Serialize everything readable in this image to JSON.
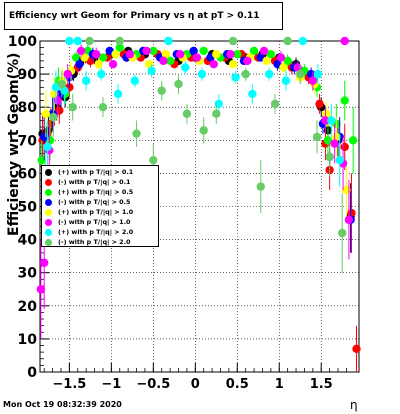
{
  "chart_data": {
    "type": "scatter",
    "title": "Efficiency wrt Geom for Primary vs   η at pT > 0.11",
    "xlabel": "η",
    "ylabel": "Efficiency wrt Geom(%)",
    "xlim": [
      -1.85,
      1.95
    ],
    "ylim": [
      0,
      100
    ],
    "x_ticks": [
      -1.5,
      -1,
      -0.5,
      0,
      0.5,
      1,
      1.5
    ],
    "x_tick_labels": [
      "−1.5",
      "−1",
      "−0.5",
      "0",
      "0.5",
      "1",
      "1.5"
    ],
    "y_ticks": [
      0,
      10,
      20,
      30,
      40,
      50,
      60,
      70,
      80,
      90,
      100
    ],
    "y_tick_labels": [
      "0",
      "10",
      "20",
      "30",
      "40",
      "50",
      "60",
      "70",
      "80",
      "90",
      "100"
    ],
    "grid": true,
    "legend_position": "left-middle",
    "series": [
      {
        "name": "(+) with p T/|q| > 0.1",
        "color": "#000000",
        "points": [
          [
            -1.82,
            72,
            6
          ],
          [
            -1.75,
            73,
            5
          ],
          [
            -1.65,
            80,
            4
          ],
          [
            -1.55,
            83,
            3
          ],
          [
            -1.45,
            90,
            2
          ],
          [
            -1.35,
            94,
            2
          ],
          [
            -1.2,
            95,
            2
          ],
          [
            -1.0,
            96,
            1
          ],
          [
            -0.8,
            97,
            1
          ],
          [
            -0.6,
            96,
            1
          ],
          [
            -0.4,
            95,
            1
          ],
          [
            -0.2,
            94,
            1
          ],
          [
            0.0,
            95,
            1
          ],
          [
            0.2,
            96,
            1
          ],
          [
            0.4,
            94,
            1
          ],
          [
            0.6,
            95,
            1
          ],
          [
            0.8,
            96,
            1
          ],
          [
            1.0,
            95,
            1
          ],
          [
            1.2,
            93,
            2
          ],
          [
            1.4,
            88,
            2
          ],
          [
            1.5,
            80,
            3
          ],
          [
            1.58,
            73,
            4
          ],
          [
            1.7,
            70,
            6
          ],
          [
            1.85,
            47,
            10
          ]
        ]
      },
      {
        "name": "(-) with p T/|q| > 0.1",
        "color": "#ff0000",
        "points": [
          [
            -1.82,
            70,
            7
          ],
          [
            -1.72,
            75,
            5
          ],
          [
            -1.62,
            79,
            4
          ],
          [
            -1.5,
            86,
            3
          ],
          [
            -1.4,
            92,
            2
          ],
          [
            -1.25,
            94,
            2
          ],
          [
            -1.05,
            95,
            1
          ],
          [
            -0.85,
            96,
            1
          ],
          [
            -0.65,
            95,
            1
          ],
          [
            -0.45,
            96,
            1
          ],
          [
            -0.25,
            93,
            1
          ],
          [
            -0.05,
            95,
            1
          ],
          [
            0.15,
            94,
            1
          ],
          [
            0.35,
            95,
            1
          ],
          [
            0.55,
            96,
            1
          ],
          [
            0.75,
            95,
            1
          ],
          [
            0.95,
            94,
            1
          ],
          [
            1.15,
            92,
            2
          ],
          [
            1.35,
            89,
            2
          ],
          [
            1.48,
            81,
            3
          ],
          [
            1.55,
            69,
            5
          ],
          [
            1.6,
            61,
            6
          ],
          [
            1.78,
            68,
            7
          ],
          [
            1.86,
            48,
            12
          ],
          [
            1.92,
            7,
            7
          ]
        ]
      },
      {
        "name": "(+) with p T/|q| > 0.5",
        "color": "#00ff00",
        "points": [
          [
            -1.83,
            64,
            8
          ],
          [
            -1.73,
            70,
            6
          ],
          [
            -1.63,
            88,
            4
          ],
          [
            -1.55,
            84,
            3
          ],
          [
            -1.42,
            95,
            2
          ],
          [
            -1.28,
            97,
            2
          ],
          [
            -1.1,
            95,
            1
          ],
          [
            -0.9,
            98,
            1
          ],
          [
            -0.7,
            96,
            1
          ],
          [
            -0.5,
            97,
            1
          ],
          [
            -0.3,
            94,
            1
          ],
          [
            -0.1,
            96,
            1
          ],
          [
            0.1,
            97,
            1
          ],
          [
            0.3,
            95,
            1
          ],
          [
            0.5,
            96,
            1
          ],
          [
            0.7,
            97,
            1
          ],
          [
            0.9,
            96,
            1
          ],
          [
            1.1,
            94,
            2
          ],
          [
            1.3,
            91,
            2
          ],
          [
            1.45,
            86,
            3
          ],
          [
            1.58,
            70,
            5
          ],
          [
            1.68,
            75,
            6
          ],
          [
            1.78,
            82,
            6
          ],
          [
            1.88,
            70,
            10
          ]
        ]
      },
      {
        "name": "(-) with p T/|q| > 0.5",
        "color": "#0000ff",
        "points": [
          [
            -1.8,
            71,
            7
          ],
          [
            -1.7,
            78,
            5
          ],
          [
            -1.6,
            84,
            4
          ],
          [
            -1.5,
            89,
            3
          ],
          [
            -1.38,
            93,
            2
          ],
          [
            -1.22,
            96,
            2
          ],
          [
            -1.02,
            97,
            1
          ],
          [
            -0.82,
            95,
            1
          ],
          [
            -0.62,
            97,
            1
          ],
          [
            -0.42,
            95,
            1
          ],
          [
            -0.22,
            96,
            1
          ],
          [
            -0.02,
            97,
            1
          ],
          [
            0.18,
            95,
            1
          ],
          [
            0.38,
            96,
            1
          ],
          [
            0.58,
            94,
            1
          ],
          [
            0.78,
            95,
            1
          ],
          [
            0.98,
            93,
            2
          ],
          [
            1.18,
            92,
            2
          ],
          [
            1.38,
            90,
            2
          ],
          [
            1.52,
            75,
            3
          ],
          [
            1.6,
            65,
            5
          ],
          [
            1.72,
            71,
            6
          ],
          [
            1.85,
            46,
            10
          ]
        ]
      },
      {
        "name": "(+) with p T/|q| > 1.0",
        "color": "#ffff00",
        "points": [
          [
            -1.78,
            78,
            7
          ],
          [
            -1.68,
            84,
            5
          ],
          [
            -1.58,
            88,
            4
          ],
          [
            -1.48,
            91,
            3
          ],
          [
            -1.32,
            95,
            2
          ],
          [
            -1.15,
            93,
            2
          ],
          [
            -0.95,
            96,
            1
          ],
          [
            -0.75,
            95,
            1
          ],
          [
            -0.55,
            93,
            1
          ],
          [
            -0.35,
            96,
            1
          ],
          [
            -0.15,
            95,
            1
          ],
          [
            0.05,
            94,
            1
          ],
          [
            0.25,
            96,
            1
          ],
          [
            0.45,
            93,
            1
          ],
          [
            0.65,
            95,
            1
          ],
          [
            0.85,
            94,
            1
          ],
          [
            1.05,
            92,
            2
          ],
          [
            1.25,
            89,
            2
          ],
          [
            1.42,
            87,
            3
          ],
          [
            1.56,
            78,
            4
          ],
          [
            1.68,
            71,
            6
          ],
          [
            1.8,
            55,
            9
          ]
        ]
      },
      {
        "name": "(-) with p T/|q| > 1.0",
        "color": "#ff00ff",
        "points": [
          [
            -1.84,
            25,
            15
          ],
          [
            -1.8,
            33,
            14
          ],
          [
            -1.74,
            67,
            8
          ],
          [
            -1.64,
            82,
            5
          ],
          [
            -1.52,
            90,
            3
          ],
          [
            -1.36,
            97,
            2
          ],
          [
            -1.18,
            96,
            2
          ],
          [
            -0.98,
            93,
            1
          ],
          [
            -0.78,
            96,
            1
          ],
          [
            -0.58,
            97,
            1
          ],
          [
            -0.38,
            94,
            1
          ],
          [
            -0.18,
            96,
            1
          ],
          [
            0.02,
            95,
            1
          ],
          [
            0.22,
            93,
            1
          ],
          [
            0.42,
            96,
            1
          ],
          [
            0.62,
            94,
            1
          ],
          [
            0.82,
            97,
            1
          ],
          [
            1.02,
            95,
            2
          ],
          [
            1.22,
            92,
            2
          ],
          [
            1.4,
            88,
            3
          ],
          [
            1.55,
            76,
            4
          ],
          [
            1.66,
            69,
            6
          ],
          [
            1.76,
            63,
            8
          ],
          [
            1.83,
            46,
            12
          ],
          [
            1.78,
            100,
            1
          ]
        ]
      },
      {
        "name": "(+) with p T/|q| > 2.0",
        "color": "#00ffff",
        "points": [
          [
            -1.76,
            68,
            8
          ],
          [
            -1.66,
            86,
            5
          ],
          [
            -1.56,
            85,
            4
          ],
          [
            -1.5,
            100,
            1
          ],
          [
            -1.4,
            100,
            1
          ],
          [
            -1.3,
            88,
            3
          ],
          [
            -1.12,
            90,
            2
          ],
          [
            -0.92,
            84,
            3
          ],
          [
            -0.72,
            88,
            2
          ],
          [
            -0.52,
            91,
            2
          ],
          [
            -0.32,
            100,
            1
          ],
          [
            -0.12,
            92,
            2
          ],
          [
            0.08,
            90,
            2
          ],
          [
            0.28,
            81,
            3
          ],
          [
            0.48,
            89,
            2
          ],
          [
            0.68,
            84,
            3
          ],
          [
            0.88,
            90,
            2
          ],
          [
            1.08,
            88,
            3
          ],
          [
            1.28,
            100,
            1
          ],
          [
            1.46,
            90,
            3
          ],
          [
            1.62,
            76,
            5
          ],
          [
            1.72,
            64,
            8
          ]
        ]
      },
      {
        "name": "(-) with p T/|q| > 2.0",
        "color": "#66cc66",
        "points": [
          [
            -1.79,
            57,
            10
          ],
          [
            -1.69,
            77,
            6
          ],
          [
            -1.59,
            87,
            4
          ],
          [
            -1.46,
            80,
            4
          ],
          [
            -1.26,
            100,
            1
          ],
          [
            -1.1,
            80,
            3
          ],
          [
            -0.9,
            100,
            1
          ],
          [
            -0.7,
            72,
            4
          ],
          [
            -0.5,
            64,
            5
          ],
          [
            -0.4,
            85,
            3
          ],
          [
            -0.2,
            87,
            3
          ],
          [
            -0.1,
            78,
            3
          ],
          [
            0.1,
            73,
            4
          ],
          [
            0.25,
            78,
            3
          ],
          [
            0.45,
            100,
            1
          ],
          [
            0.6,
            90,
            2
          ],
          [
            0.78,
            56,
            8
          ],
          [
            0.95,
            81,
            3
          ],
          [
            1.1,
            100,
            1
          ],
          [
            1.25,
            90,
            3
          ],
          [
            1.45,
            71,
            5
          ],
          [
            1.6,
            65,
            6
          ],
          [
            1.75,
            42,
            12
          ]
        ]
      }
    ]
  }
}
